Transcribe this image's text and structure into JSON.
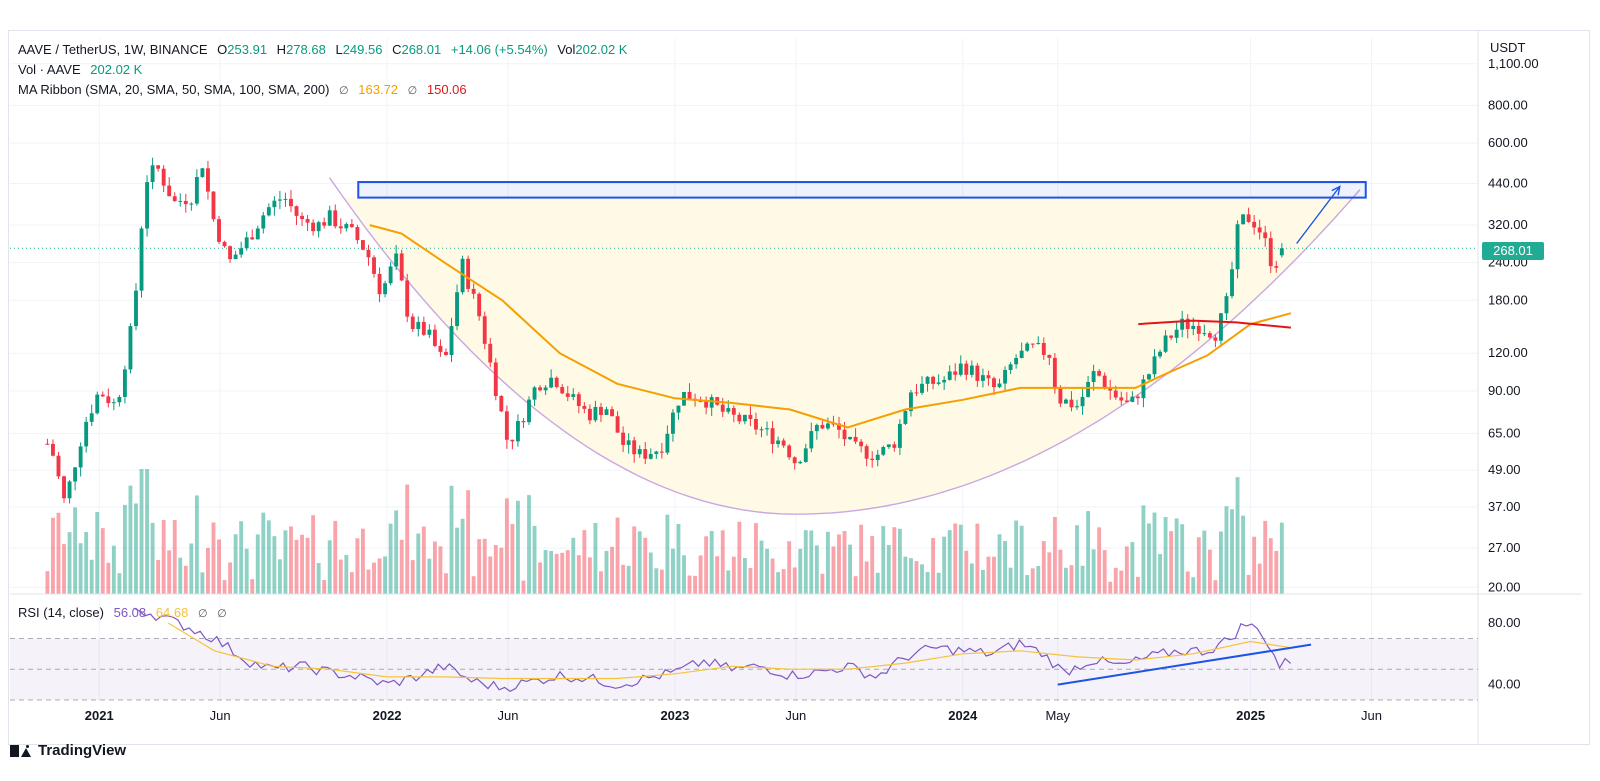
{
  "header": {
    "symbol": "AAVE / TetherUS, 1W, BINANCE",
    "open_label": "O",
    "open": "253.91",
    "high_label": "H",
    "high": "278.68",
    "low_label": "L",
    "low": "249.56",
    "close_label": "C",
    "close": "268.01",
    "change": "+14.06 (+5.54%)",
    "vol_label": "Vol",
    "vol": "202.02 K",
    "vol_line_label": "Vol · AAVE",
    "vol_line_value": "202.02 K",
    "ma_label": "MA Ribbon (SMA, 20, SMA, 50, SMA, 100, SMA, 200)",
    "ma_sym1": "∅",
    "ma_value1": "163.72",
    "ma_sym2": "∅",
    "ma_value2": "150.06",
    "rsi_label": "RSI (14, close)",
    "rsi_value": "56.08",
    "rsi_ma_value": "64.68",
    "rsi_sym1": "∅",
    "rsi_sym2": "∅"
  },
  "price_axis": {
    "unit": "USDT",
    "current_price": "268.01"
  },
  "brand": "TradingView",
  "colors": {
    "up": "#089981",
    "down": "#f23645",
    "ma20": "#f59f00",
    "ma_red": "#e3151b",
    "rsi": "#7e57c2",
    "rsi_ma": "#f5c33b",
    "box": "#1e53e5"
  },
  "chart_data": [
    {
      "type": "candlestick",
      "scale": "log",
      "ylim": [
        19,
        1150
      ],
      "y_ticks": [
        "1,100.00",
        "800.00",
        "600.00",
        "440.00",
        "320.00",
        "240.00",
        "180.00",
        "120.00",
        "90.00",
        "65.00",
        "49.00",
        "37.00",
        "27.00",
        "20.00"
      ],
      "y_tick_values": [
        1100,
        800,
        600,
        440,
        320,
        240,
        180,
        120,
        90,
        65,
        49,
        37,
        27,
        20
      ],
      "x_ticks": [
        {
          "label": "2021",
          "t": 2021.0
        },
        {
          "label": "Jun",
          "t": 2021.42
        },
        {
          "label": "2022",
          "t": 2022.0
        },
        {
          "label": "Jun",
          "t": 2022.42
        },
        {
          "label": "2023",
          "t": 2023.0
        },
        {
          "label": "Jun",
          "t": 2023.42
        },
        {
          "label": "2024",
          "t": 2024.0
        },
        {
          "label": "May",
          "t": 2024.33
        },
        {
          "label": "2025",
          "t": 2025.0
        },
        {
          "label": "Jun",
          "t": 2025.42
        }
      ],
      "x_range": [
        2020.69,
        2025.79
      ],
      "price_anchors": [
        [
          2020.83,
          60
        ],
        [
          2020.88,
          38
        ],
        [
          2020.95,
          70
        ],
        [
          2021.0,
          90
        ],
        [
          2021.06,
          80
        ],
        [
          2021.12,
          160
        ],
        [
          2021.16,
          450
        ],
        [
          2021.2,
          500
        ],
        [
          2021.26,
          380
        ],
        [
          2021.32,
          400
        ],
        [
          2021.36,
          520
        ],
        [
          2021.39,
          350
        ],
        [
          2021.45,
          240
        ],
        [
          2021.52,
          290
        ],
        [
          2021.58,
          360
        ],
        [
          2021.64,
          400
        ],
        [
          2021.7,
          330
        ],
        [
          2021.76,
          320
        ],
        [
          2021.8,
          340
        ],
        [
          2021.88,
          300
        ],
        [
          2021.93,
          260
        ],
        [
          2021.98,
          190
        ],
        [
          2022.03,
          250
        ],
        [
          2022.08,
          150
        ],
        [
          2022.14,
          140
        ],
        [
          2022.2,
          110
        ],
        [
          2022.26,
          240
        ],
        [
          2022.32,
          160
        ],
        [
          2022.38,
          90
        ],
        [
          2022.42,
          60
        ],
        [
          2022.46,
          70
        ],
        [
          2022.52,
          95
        ],
        [
          2022.58,
          100
        ],
        [
          2022.64,
          85
        ],
        [
          2022.7,
          75
        ],
        [
          2022.76,
          80
        ],
        [
          2022.82,
          60
        ],
        [
          2022.88,
          55
        ],
        [
          2022.95,
          58
        ],
        [
          2023.02,
          88
        ],
        [
          2023.1,
          85
        ],
        [
          2023.18,
          75
        ],
        [
          2023.26,
          70
        ],
        [
          2023.32,
          65
        ],
        [
          2023.38,
          60
        ],
        [
          2023.42,
          52
        ],
        [
          2023.5,
          70
        ],
        [
          2023.56,
          68
        ],
        [
          2023.62,
          58
        ],
        [
          2023.7,
          55
        ],
        [
          2023.76,
          60
        ],
        [
          2023.82,
          90
        ],
        [
          2023.88,
          95
        ],
        [
          2023.94,
          98
        ],
        [
          2024.0,
          110
        ],
        [
          2024.06,
          100
        ],
        [
          2024.12,
          90
        ],
        [
          2024.18,
          115
        ],
        [
          2024.24,
          125
        ],
        [
          2024.3,
          120
        ],
        [
          2024.33,
          85
        ],
        [
          2024.4,
          80
        ],
        [
          2024.46,
          105
        ],
        [
          2024.52,
          88
        ],
        [
          2024.58,
          80
        ],
        [
          2024.64,
          100
        ],
        [
          2024.7,
          130
        ],
        [
          2024.76,
          150
        ],
        [
          2024.82,
          148
        ],
        [
          2024.88,
          140
        ],
        [
          2024.92,
          180
        ],
        [
          2024.96,
          330
        ],
        [
          2025.0,
          340
        ],
        [
          2025.04,
          300
        ],
        [
          2025.08,
          230
        ],
        [
          2025.11,
          268
        ]
      ],
      "ma_anchors": [
        [
          2021.94,
          320
        ],
        [
          2022.05,
          300
        ],
        [
          2022.2,
          240
        ],
        [
          2022.4,
          180
        ],
        [
          2022.6,
          120
        ],
        [
          2022.8,
          95
        ],
        [
          2023.0,
          85
        ],
        [
          2023.2,
          82
        ],
        [
          2023.4,
          78
        ],
        [
          2023.6,
          68
        ],
        [
          2023.8,
          78
        ],
        [
          2024.0,
          84
        ],
        [
          2024.2,
          92
        ],
        [
          2024.4,
          92
        ],
        [
          2024.6,
          92
        ],
        [
          2024.7,
          102
        ],
        [
          2024.85,
          118
        ],
        [
          2025.0,
          150
        ],
        [
          2025.14,
          163
        ]
      ],
      "ma_red_segment": [
        [
          2024.61,
          150
        ],
        [
          2024.8,
          154
        ],
        [
          2024.95,
          152
        ],
        [
          2025.14,
          146
        ]
      ],
      "resistance_box": {
        "t0": 2021.9,
        "t1": 2025.4,
        "p_low": 395,
        "p_high": 445
      },
      "cup_curve": {
        "t_start": 2021.8,
        "p_start": 460,
        "t_min": 2023.42,
        "p_min": 35,
        "t_end": 2025.38,
        "p_end": 420
      },
      "arrow": {
        "from": [
          2025.16,
          278
        ],
        "to": [
          2025.31,
          430
        ]
      },
      "volume_axis_max": 1
    },
    {
      "type": "line",
      "name": "RSI (14, close)",
      "ylim": [
        30,
        95
      ],
      "y_ticks": [
        "80.00",
        "40.00"
      ],
      "y_tick_values": [
        80,
        40
      ],
      "levels": [
        70,
        50,
        30
      ],
      "rsi_anchors": [
        [
          2021.12,
          90
        ],
        [
          2021.2,
          85
        ],
        [
          2021.3,
          78
        ],
        [
          2021.4,
          70
        ],
        [
          2021.52,
          55
        ],
        [
          2021.6,
          50
        ],
        [
          2021.7,
          52
        ],
        [
          2021.8,
          48
        ],
        [
          2021.9,
          45
        ],
        [
          2022.0,
          40
        ],
        [
          2022.1,
          45
        ],
        [
          2022.2,
          52
        ],
        [
          2022.3,
          42
        ],
        [
          2022.4,
          38
        ],
        [
          2022.5,
          42
        ],
        [
          2022.6,
          46
        ],
        [
          2022.7,
          44
        ],
        [
          2022.8,
          40
        ],
        [
          2022.9,
          44
        ],
        [
          2023.0,
          48
        ],
        [
          2023.1,
          55
        ],
        [
          2023.2,
          50
        ],
        [
          2023.3,
          52
        ],
        [
          2023.4,
          46
        ],
        [
          2023.5,
          48
        ],
        [
          2023.6,
          52
        ],
        [
          2023.7,
          45
        ],
        [
          2023.8,
          58
        ],
        [
          2023.9,
          64
        ],
        [
          2024.0,
          62
        ],
        [
          2024.1,
          60
        ],
        [
          2024.2,
          67
        ],
        [
          2024.28,
          60
        ],
        [
          2024.35,
          48
        ],
        [
          2024.45,
          56
        ],
        [
          2024.55,
          52
        ],
        [
          2024.65,
          58
        ],
        [
          2024.75,
          62
        ],
        [
          2024.85,
          62
        ],
        [
          2024.93,
          70
        ],
        [
          2024.98,
          80
        ],
        [
          2025.04,
          74
        ],
        [
          2025.1,
          52
        ],
        [
          2025.14,
          56
        ]
      ],
      "rsi_ma_anchors": [
        [
          2021.24,
          80
        ],
        [
          2021.4,
          62
        ],
        [
          2021.6,
          52
        ],
        [
          2021.8,
          50
        ],
        [
          2022.0,
          45
        ],
        [
          2022.2,
          45
        ],
        [
          2022.4,
          44
        ],
        [
          2022.6,
          44
        ],
        [
          2022.8,
          44
        ],
        [
          2023.0,
          47
        ],
        [
          2023.2,
          52
        ],
        [
          2023.4,
          50
        ],
        [
          2023.6,
          50
        ],
        [
          2023.8,
          54
        ],
        [
          2024.0,
          60
        ],
        [
          2024.2,
          62
        ],
        [
          2024.4,
          58
        ],
        [
          2024.6,
          56
        ],
        [
          2024.8,
          60
        ],
        [
          2025.0,
          68
        ],
        [
          2025.14,
          64
        ]
      ],
      "trendline": {
        "from": [
          2024.33,
          40
        ],
        "to": [
          2025.21,
          66
        ]
      }
    }
  ]
}
